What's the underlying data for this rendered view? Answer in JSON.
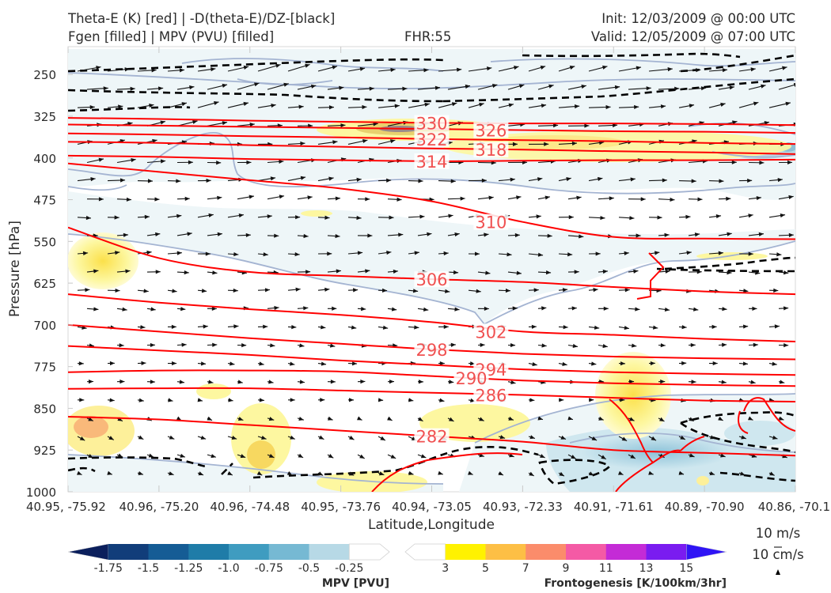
{
  "header": {
    "title_line1": "Theta-E (K) [red] | -D(theta-E)/DZ-[black]",
    "title_line2": "Fgen [filled] | MPV (PVU) [filled]",
    "fhr": "FHR:55",
    "init": "Init: 12/03/2009 @ 00:00 UTC",
    "valid": "Valid: 12/05/2009 @ 07:00 UTC"
  },
  "chart_data": {
    "type": "cross-section",
    "ylabel": "Pressure [hPa]",
    "xlabel": "Latitude,Longitude",
    "y_ticks": [
      250,
      325,
      400,
      475,
      550,
      625,
      700,
      775,
      850,
      925,
      1000
    ],
    "ylim": [
      1000,
      200
    ],
    "y_inverted": true,
    "x_ticks": [
      "40.95, -75.92",
      "40.96, -75.20",
      "40.96, -74.48",
      "40.95, -73.76",
      "40.94, -73.05",
      "40.93, -72.33",
      "40.91, -71.61",
      "40.89, -70.90",
      "40.86, -70.1"
    ],
    "theta_e_colors": {
      "line": "#ff0000",
      "label": "#f05050"
    },
    "theta_e_contours": [
      {
        "value": "330",
        "p": [
          328,
          330,
          333,
          335,
          337,
          338,
          338,
          339,
          341
        ]
      },
      {
        "value": "326",
        "p": [
          340,
          342,
          344,
          346,
          348,
          350,
          352,
          353,
          355
        ]
      },
      {
        "value": "322",
        "p": [
          356,
          358,
          361,
          363,
          366,
          368,
          370,
          373,
          375
        ]
      },
      {
        "value": "318",
        "p": [
          371,
          373,
          377,
          380,
          383,
          385,
          388,
          390,
          393
        ]
      },
      {
        "value": "314",
        "p": [
          396,
          398,
          402,
          404,
          406,
          405,
          404,
          404,
          403
        ]
      },
      {
        "value": "310",
        "p": [
          410,
          425,
          440,
          455,
          478,
          515,
          542,
          545,
          546
        ]
      },
      {
        "value": "306",
        "p": [
          525,
          580,
          605,
          612,
          618,
          623,
          632,
          640,
          645
        ]
      },
      {
        "value": "302",
        "p": [
          645,
          660,
          672,
          682,
          695,
          712,
          718,
          725,
          730
        ]
      },
      {
        "value": "298",
        "p": [
          700,
          712,
          724,
          734,
          744,
          752,
          757,
          760,
          762
        ]
      },
      {
        "value": "294",
        "p": [
          738,
          746,
          754,
          764,
          772,
          780,
          785,
          788,
          790
        ]
      },
      {
        "value": "290",
        "p": [
          785,
          782,
          782,
          784,
          792,
          800,
          805,
          808,
          810
        ]
      },
      {
        "value": "286",
        "p": [
          815,
          814,
          814,
          818,
          822,
          826,
          831,
          836,
          838
        ]
      },
      {
        "value": "282",
        "p": [
          865,
          870,
          880,
          890,
          900,
          910,
          925,
          930,
          935
        ]
      }
    ],
    "mpv_colorbar": {
      "label": "MPV [PVU]",
      "ticks": [
        "-1.75",
        "-1.5",
        "-1.25",
        "-1.0",
        "-0.75",
        "-0.5",
        "-0.25"
      ],
      "colors": [
        "#0b1f5c",
        "#113d7a",
        "#155c95",
        "#1f7ca8",
        "#3f9cc0",
        "#76b9d3",
        "#b7d9e6",
        "#ffffff"
      ]
    },
    "fgen_colorbar": {
      "label": "Frontogenesis [K/100km/3hr]",
      "ticks": [
        "3",
        "5",
        "7",
        "9",
        "11",
        "13",
        "15"
      ],
      "colors": [
        "#ffffff",
        "#fff200",
        "#fdbf45",
        "#fb8c6b",
        "#f45aa5",
        "#c42bd6",
        "#7a1cf0",
        "#2f14f5"
      ]
    },
    "wind_key": {
      "horizontal": "10 m/s",
      "vertical": "10 cm/s"
    }
  }
}
